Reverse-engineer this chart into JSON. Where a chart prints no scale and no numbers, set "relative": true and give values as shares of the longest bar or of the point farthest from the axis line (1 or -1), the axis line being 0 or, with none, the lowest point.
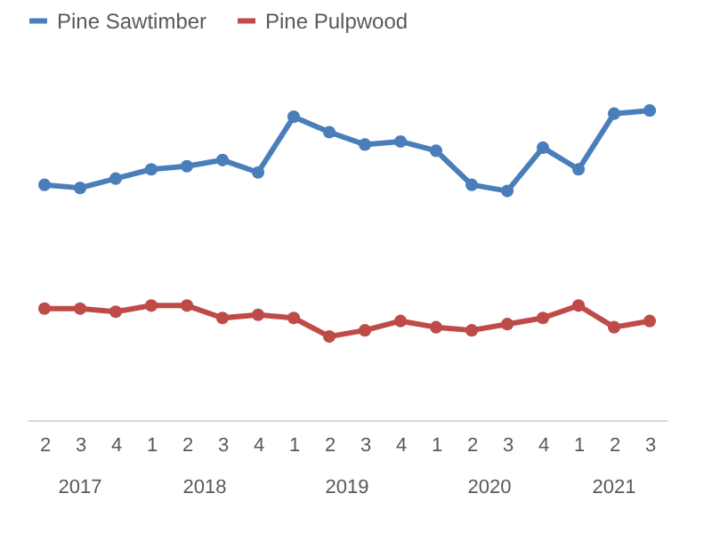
{
  "chart_data": {
    "type": "line",
    "relative": true,
    "categories": [
      "2",
      "3",
      "4",
      "1",
      "2",
      "3",
      "4",
      "1",
      "2",
      "3",
      "4",
      "1",
      "2",
      "3",
      "4",
      "1",
      "2",
      "3"
    ],
    "series": [
      {
        "name": "Pine Sawtimber",
        "color": "#4a7ebb",
        "values": [
          0.76,
          0.75,
          0.78,
          0.81,
          0.82,
          0.84,
          0.8,
          0.98,
          0.93,
          0.89,
          0.9,
          0.87,
          0.76,
          0.74,
          0.88,
          0.81,
          0.99,
          1.0
        ]
      },
      {
        "name": "Pine Pulpwood",
        "color": "#be4b48",
        "values": [
          0.36,
          0.36,
          0.35,
          0.37,
          0.37,
          0.33,
          0.34,
          0.33,
          0.27,
          0.29,
          0.32,
          0.3,
          0.29,
          0.31,
          0.33,
          0.37,
          0.3,
          0.32
        ]
      }
    ],
    "annotations": [
      "2017",
      "2018",
      "2019",
      "2020",
      "2021"
    ],
    "legend": "top",
    "marker": "circle",
    "line_style": "solid"
  }
}
